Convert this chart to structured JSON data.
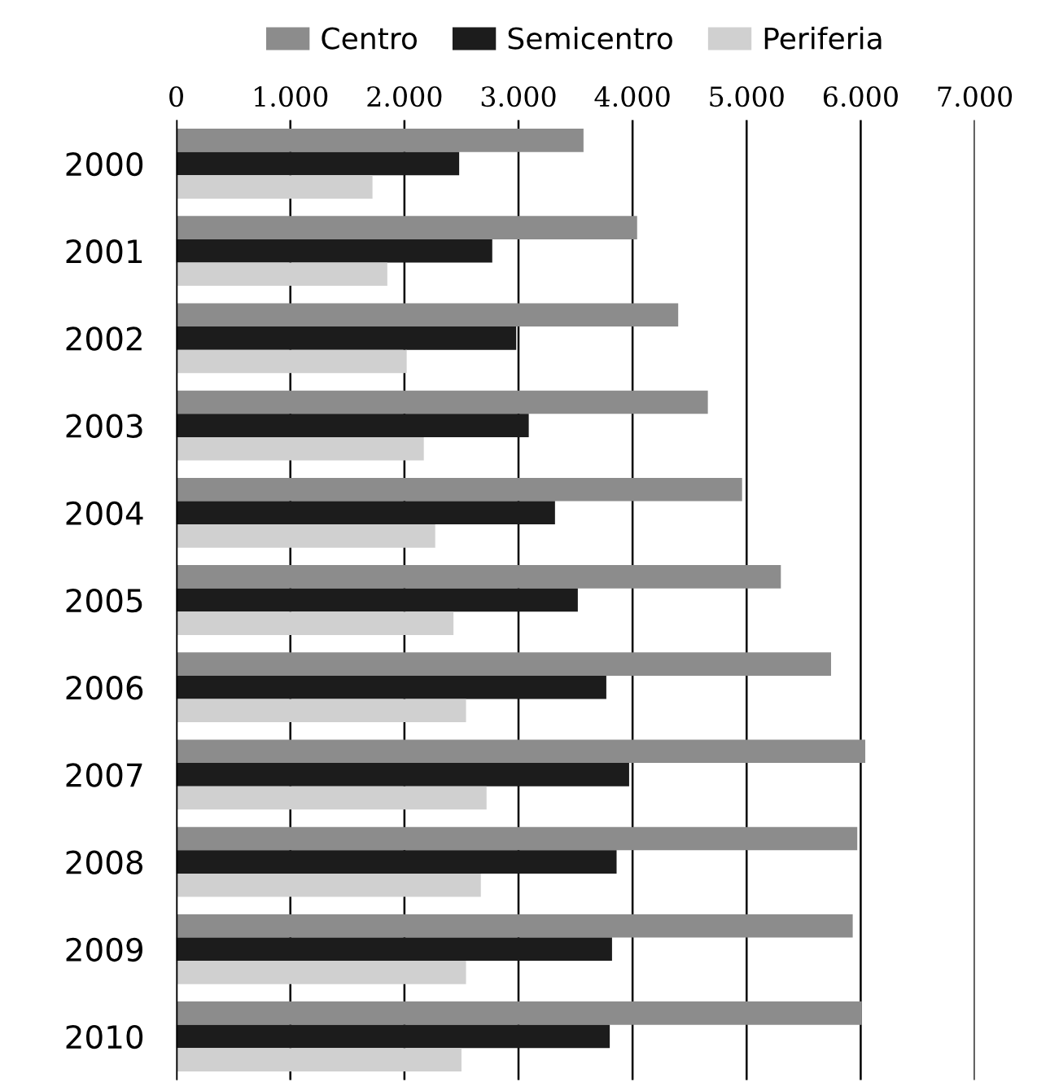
{
  "chart_data": {
    "type": "bar",
    "orientation": "horizontal",
    "categories": [
      "2000",
      "2001",
      "2002",
      "2003",
      "2004",
      "2005",
      "2006",
      "2007",
      "2008",
      "2009",
      "2010"
    ],
    "series": [
      {
        "name": "Centro",
        "color": "#8c8c8c",
        "values": [
          3570,
          4040,
          4400,
          4660,
          4960,
          5300,
          5740,
          6040,
          5970,
          5930,
          6010
        ]
      },
      {
        "name": "Semicentro",
        "color": "#1c1c1c",
        "values": [
          2480,
          2770,
          2980,
          3090,
          3320,
          3520,
          3770,
          3970,
          3860,
          3820,
          3800
        ]
      },
      {
        "name": "Periferia",
        "color": "#d0d0d0",
        "values": [
          1720,
          1850,
          2020,
          2170,
          2270,
          2430,
          2540,
          2720,
          2670,
          2540,
          2500
        ]
      }
    ],
    "xlim": [
      0,
      7000
    ],
    "xticks": [
      0,
      {
        "value": 1000,
        "label": "1.000"
      },
      {
        "value": 2000,
        "label": "2.000"
      },
      {
        "value": 3000,
        "label": "3.000"
      },
      {
        "value": 4000,
        "label": "4.000"
      },
      {
        "value": 5000,
        "label": "5.000"
      },
      {
        "value": 6000,
        "label": "6.000"
      },
      {
        "value": 7000,
        "label": "7.000"
      }
    ],
    "grid": "x",
    "legend": "top"
  }
}
